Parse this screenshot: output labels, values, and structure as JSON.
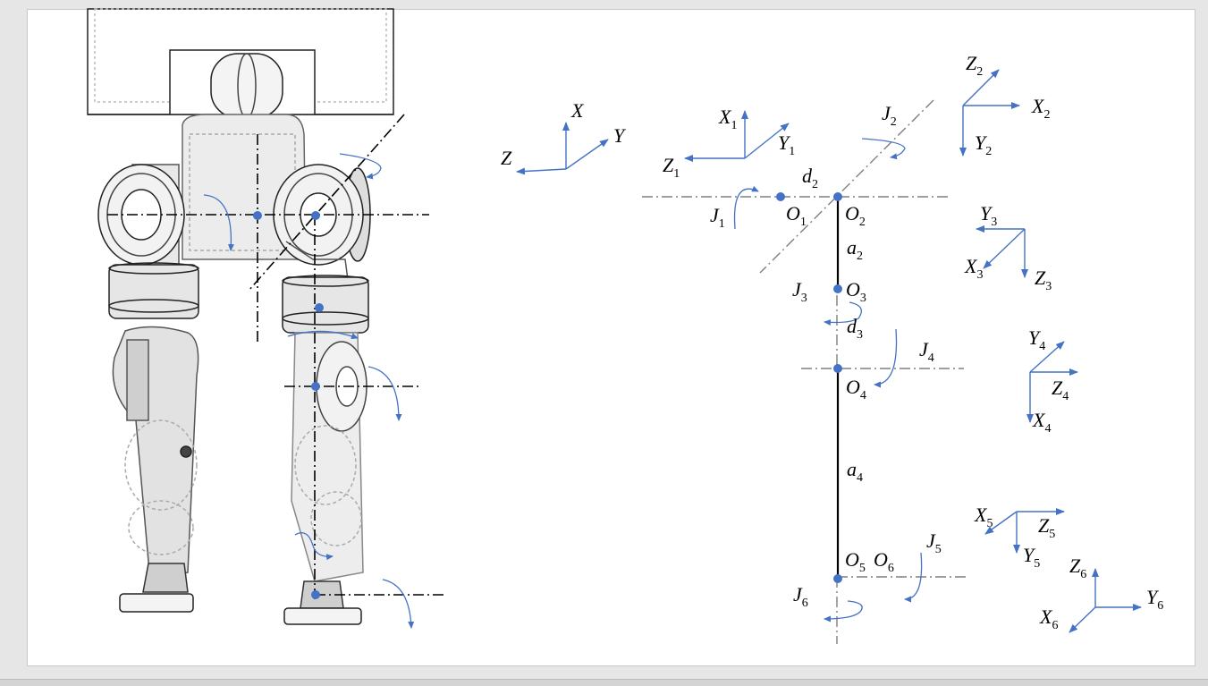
{
  "colors": {
    "axis": "#4472C4",
    "joint": "#4472C4",
    "link": "#000000",
    "dashline": "#7f7f7f",
    "ghost": "#9a9a9a"
  },
  "base_frame": {
    "x": "X",
    "y": "Y",
    "z": "Z"
  },
  "frames": [
    {
      "x": {
        "m": "X",
        "s": "1"
      },
      "y": {
        "m": "Y",
        "s": "1"
      },
      "z": {
        "m": "Z",
        "s": "1"
      }
    },
    {
      "x": {
        "m": "X",
        "s": "2"
      },
      "y": {
        "m": "Y",
        "s": "2"
      },
      "z": {
        "m": "Z",
        "s": "2"
      }
    },
    {
      "x": {
        "m": "X",
        "s": "3"
      },
      "y": {
        "m": "Y",
        "s": "3"
      },
      "z": {
        "m": "Z",
        "s": "3"
      }
    },
    {
      "x": {
        "m": "X",
        "s": "4"
      },
      "y": {
        "m": "Y",
        "s": "4"
      },
      "z": {
        "m": "Z",
        "s": "4"
      }
    },
    {
      "x": {
        "m": "X",
        "s": "5"
      },
      "y": {
        "m": "Y",
        "s": "5"
      },
      "z": {
        "m": "Z",
        "s": "5"
      }
    },
    {
      "x": {
        "m": "X",
        "s": "6"
      },
      "y": {
        "m": "Y",
        "s": "6"
      },
      "z": {
        "m": "Z",
        "s": "6"
      }
    }
  ],
  "joints": [
    {
      "m": "J",
      "s": "1"
    },
    {
      "m": "J",
      "s": "2"
    },
    {
      "m": "J",
      "s": "3"
    },
    {
      "m": "J",
      "s": "4"
    },
    {
      "m": "J",
      "s": "5"
    },
    {
      "m": "J",
      "s": "6"
    }
  ],
  "origins": [
    {
      "m": "O",
      "s": "1"
    },
    {
      "m": "O",
      "s": "2"
    },
    {
      "m": "O",
      "s": "3"
    },
    {
      "m": "O",
      "s": "4"
    },
    {
      "m": "O",
      "s": "5"
    },
    {
      "m": "O",
      "s": "6"
    }
  ],
  "params": [
    {
      "m": "d",
      "s": "2"
    },
    {
      "m": "a",
      "s": "2"
    },
    {
      "m": "d",
      "s": "3"
    },
    {
      "m": "a",
      "s": "4"
    }
  ]
}
